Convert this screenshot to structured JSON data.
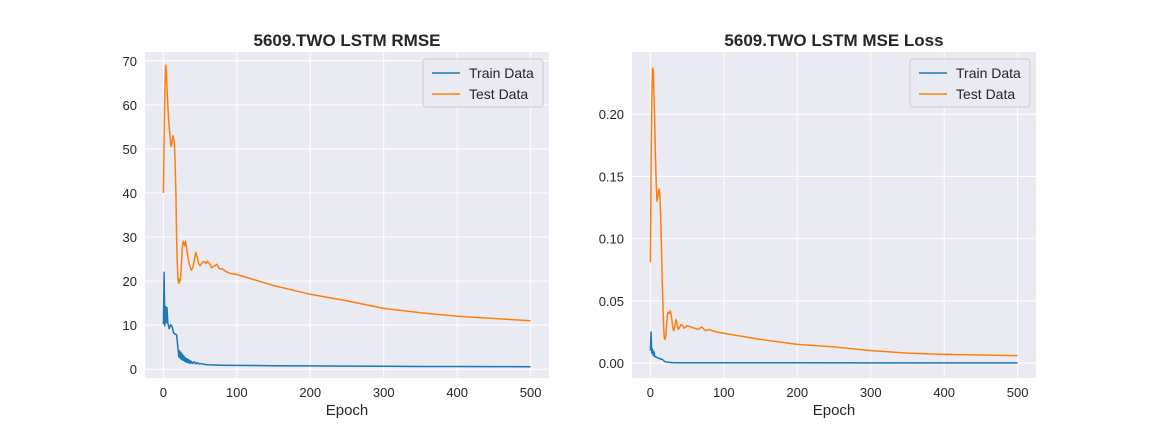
{
  "chart_data": [
    {
      "type": "line",
      "title": "5609.TWO  LSTM RMSE",
      "xlabel": "Epoch",
      "ylabel": "",
      "xlim": [
        -25,
        525
      ],
      "ylim": [
        -2,
        72
      ],
      "xticks": [
        0,
        100,
        200,
        300,
        400,
        500
      ],
      "yticks": [
        0,
        10,
        20,
        30,
        40,
        50,
        60,
        70
      ],
      "grid": true,
      "legend_position": "top-right",
      "series": [
        {
          "name": "Train Data",
          "color": "#1f77b4",
          "x": [
            0,
            1,
            2,
            3,
            4,
            5,
            6,
            7,
            8,
            10,
            12,
            14,
            16,
            18,
            20,
            21,
            22,
            23,
            24,
            25,
            26,
            27,
            28,
            29,
            30,
            31,
            32,
            33,
            34,
            35,
            36,
            37,
            38,
            40,
            42,
            44,
            46,
            48,
            50,
            55,
            60,
            70,
            80,
            100,
            150,
            200,
            250,
            300,
            350,
            400,
            450,
            500
          ],
          "y": [
            10.2,
            22,
            9.8,
            14.2,
            10.5,
            14,
            10.5,
            9.8,
            9.2,
            10.1,
            9.6,
            8.2,
            8.0,
            7.8,
            4.5,
            2.8,
            4.2,
            2.4,
            3.8,
            2.2,
            3.4,
            2.0,
            3.0,
            1.8,
            2.6,
            1.6,
            2.4,
            1.5,
            2.2,
            1.4,
            2.0,
            1.3,
            1.8,
            1.3,
            1.7,
            1.2,
            1.5,
            1.2,
            1.3,
            1.1,
            1.0,
            0.95,
            0.9,
            0.85,
            0.8,
            0.75,
            0.7,
            0.65,
            0.62,
            0.6,
            0.58,
            0.55
          ]
        },
        {
          "name": "Test Data",
          "color": "#ff7f0e",
          "x": [
            0,
            1,
            2,
            3,
            4,
            5,
            6,
            7,
            8,
            9,
            10,
            11,
            12,
            13,
            14,
            15,
            16,
            17,
            18,
            19,
            20,
            21,
            22,
            23,
            24,
            25,
            26,
            27,
            28,
            29,
            30,
            31,
            32,
            33,
            34,
            35,
            36,
            37,
            38,
            40,
            42,
            44,
            46,
            48,
            50,
            52,
            55,
            58,
            60,
            63,
            66,
            70,
            73,
            76,
            80,
            85,
            90,
            100,
            120,
            150,
            200,
            250,
            300,
            350,
            400,
            450,
            500
          ],
          "y": [
            40,
            52,
            62,
            69,
            68,
            64,
            60,
            57,
            55,
            53,
            51,
            50.5,
            52,
            53,
            52.5,
            51,
            47,
            40,
            30,
            24,
            20,
            19.5,
            20.5,
            20,
            22,
            25,
            28,
            29,
            28.5,
            28,
            29,
            28.5,
            27,
            26,
            25,
            24,
            23.5,
            23,
            22.5,
            23,
            24.5,
            26.5,
            25.5,
            24,
            23.5,
            24,
            24.5,
            24,
            24.5,
            24,
            23,
            23.5,
            23.8,
            22.8,
            22.8,
            22.2,
            21.8,
            21.5,
            20.5,
            19,
            17,
            15.5,
            13.8,
            12.8,
            12,
            11.5,
            11
          ]
        }
      ]
    },
    {
      "type": "line",
      "title": "5609.TWO  LSTM MSE Loss",
      "xlabel": "Epoch",
      "ylabel": "",
      "xlim": [
        -25,
        525
      ],
      "ylim": [
        -0.012,
        0.25
      ],
      "xticks": [
        0,
        100,
        200,
        300,
        400,
        500
      ],
      "yticks": [
        0.0,
        0.05,
        0.1,
        0.15,
        0.2
      ],
      "ytick_labels": [
        "0.00",
        "0.05",
        "0.10",
        "0.15",
        "0.20"
      ],
      "grid": true,
      "legend_position": "top-right",
      "series": [
        {
          "name": "Train Data",
          "color": "#1f77b4",
          "x": [
            0,
            1,
            2,
            3,
            4,
            5,
            6,
            8,
            10,
            12,
            14,
            16,
            18,
            20,
            22,
            25,
            30,
            40,
            50,
            70,
            100,
            200,
            300,
            400,
            500
          ],
          "y": [
            0.01,
            0.025,
            0.008,
            0.011,
            0.006,
            0.009,
            0.005,
            0.005,
            0.004,
            0.004,
            0.003,
            0.003,
            0.002,
            0.001,
            0.001,
            0.0005,
            0.0004,
            0.0003,
            0.0003,
            0.0002,
            0.0002,
            0.0002,
            0.0001,
            0.0001,
            0.0001
          ]
        },
        {
          "name": "Test Data",
          "color": "#ff7f0e",
          "x": [
            0,
            1,
            2,
            3,
            4,
            5,
            6,
            7,
            8,
            9,
            10,
            11,
            12,
            13,
            14,
            15,
            16,
            17,
            18,
            19,
            20,
            21,
            22,
            23,
            24,
            25,
            26,
            27,
            28,
            29,
            30,
            31,
            32,
            33,
            34,
            35,
            36,
            37,
            38,
            40,
            42,
            44,
            46,
            48,
            50,
            55,
            60,
            65,
            70,
            75,
            80,
            90,
            100,
            120,
            150,
            200,
            250,
            300,
            350,
            400,
            450,
            500
          ],
          "y": [
            0.081,
            0.16,
            0.21,
            0.237,
            0.235,
            0.215,
            0.19,
            0.165,
            0.145,
            0.13,
            0.133,
            0.137,
            0.14,
            0.135,
            0.12,
            0.095,
            0.07,
            0.048,
            0.03,
            0.02,
            0.019,
            0.022,
            0.03,
            0.038,
            0.041,
            0.04,
            0.04,
            0.042,
            0.04,
            0.036,
            0.031,
            0.027,
            0.026,
            0.028,
            0.032,
            0.035,
            0.033,
            0.029,
            0.027,
            0.029,
            0.031,
            0.03,
            0.028,
            0.029,
            0.03,
            0.029,
            0.028,
            0.027,
            0.029,
            0.026,
            0.027,
            0.025,
            0.024,
            0.022,
            0.019,
            0.015,
            0.013,
            0.01,
            0.008,
            0.007,
            0.0065,
            0.006
          ]
        }
      ]
    }
  ]
}
